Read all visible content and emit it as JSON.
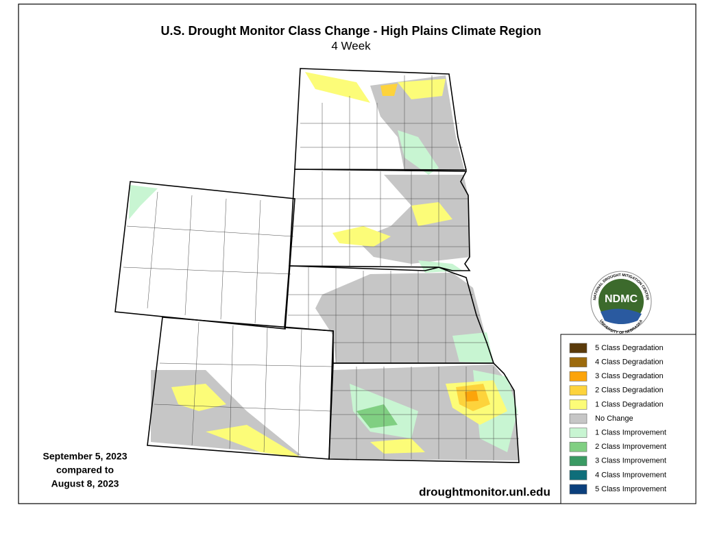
{
  "header": {
    "title": "U.S. Drought Monitor Class Change - High Plains Climate Region",
    "subtitle": "4 Week"
  },
  "date_note": {
    "lines": [
      "September 5, 2023",
      "compared to",
      "August 8, 2023"
    ]
  },
  "source_url": "droughtmonitor.unl.edu",
  "legend": {
    "items": [
      {
        "label": "5 Class Degradation",
        "color": "#5a3a0a"
      },
      {
        "label": "4 Class Degradation",
        "color": "#9c6a0c"
      },
      {
        "label": "3 Class Degradation",
        "color": "#fca40a"
      },
      {
        "label": "2 Class Degradation",
        "color": "#fdd33c"
      },
      {
        "label": "1 Class Degradation",
        "color": "#fcfc78"
      },
      {
        "label": "No Change",
        "color": "#c6c6c6"
      },
      {
        "label": "1 Class Improvement",
        "color": "#c8f5d2"
      },
      {
        "label": "2 Class Improvement",
        "color": "#80cf82"
      },
      {
        "label": "3 Class Improvement",
        "color": "#3a9a63"
      },
      {
        "label": "4 Class Improvement",
        "color": "#0f6e7a"
      },
      {
        "label": "5 Class Improvement",
        "color": "#0b3f7c"
      }
    ]
  },
  "logo": {
    "abbr": "NDMC",
    "ring_top": "NATIONAL DROUGHT MITIGATION CENTER",
    "ring_bottom": "UNIVERSITY OF NEBRASKA"
  }
}
